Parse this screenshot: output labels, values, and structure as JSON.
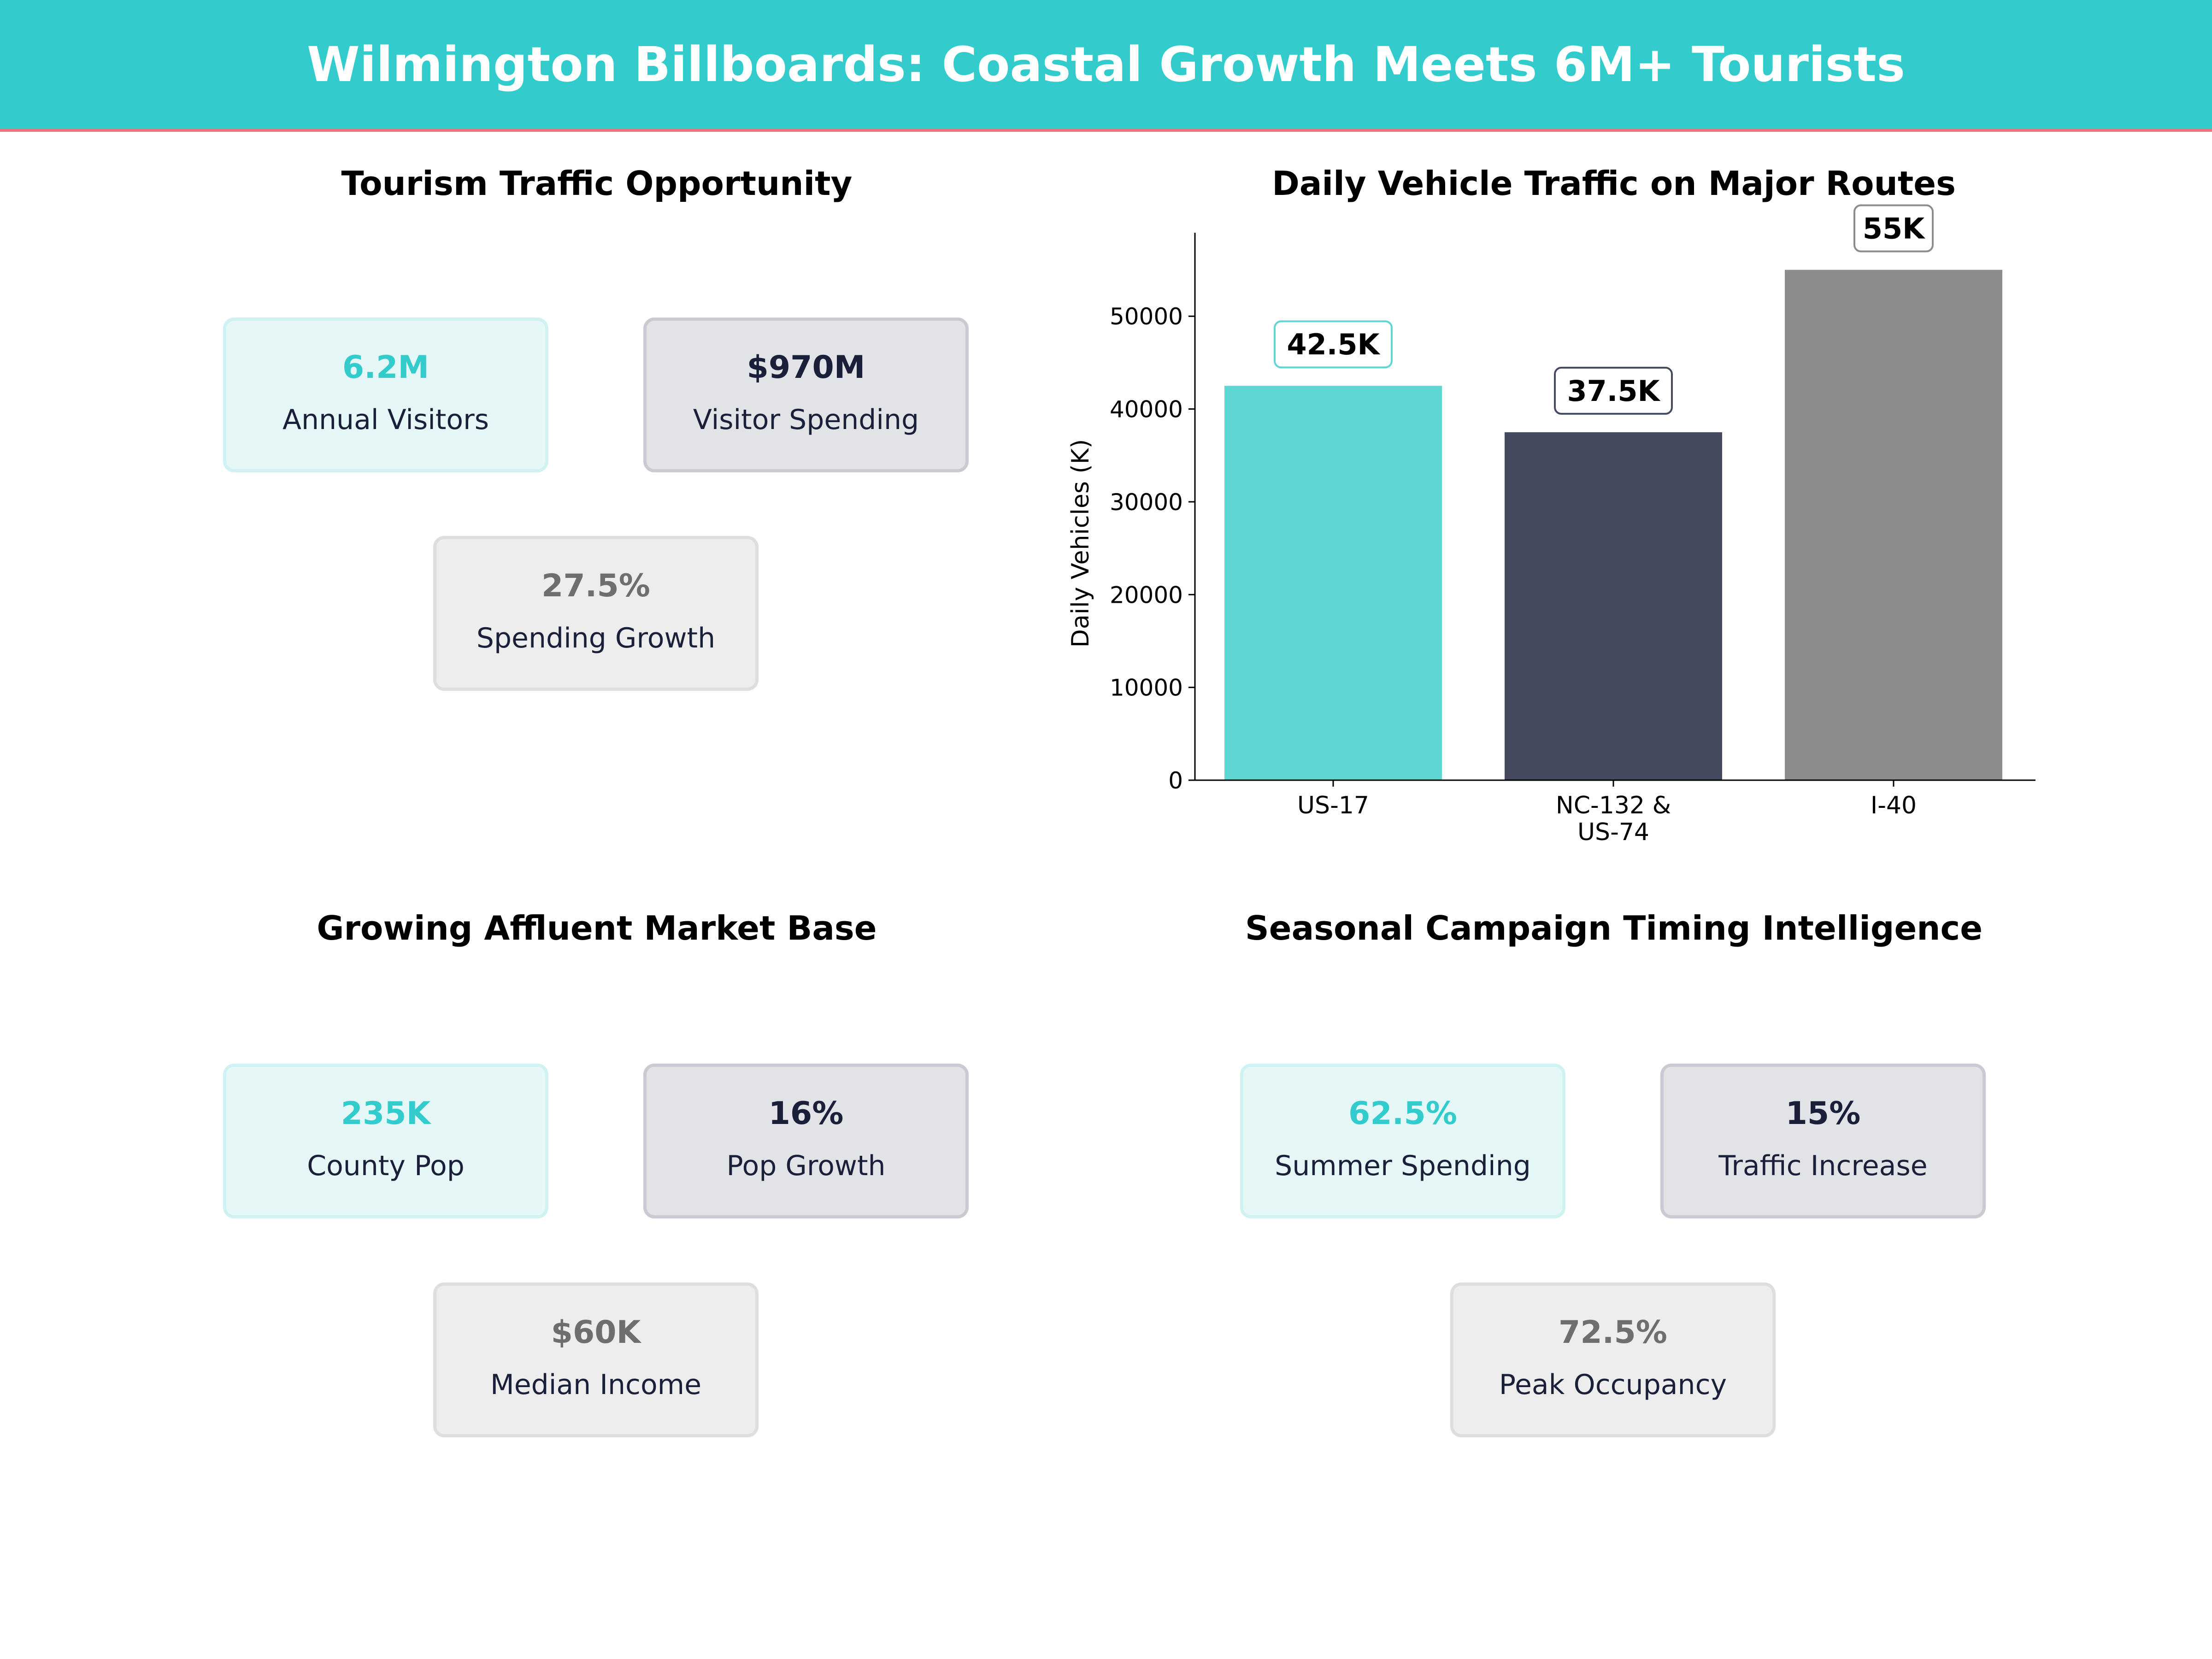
{
  "header": {
    "title": "Wilmington Billboards: Coastal Growth Meets 6M+ Tourists"
  },
  "panels": {
    "tourism": {
      "title": "Tourism Traffic Opportunity",
      "cards": [
        {
          "value": "6.2M",
          "label": "Annual Visitors"
        },
        {
          "value": "$970M",
          "label": "Visitor Spending"
        },
        {
          "value": "27.5%",
          "label": "Spending Growth"
        }
      ]
    },
    "market": {
      "title": "Growing Affluent Market Base",
      "cards": [
        {
          "value": "235K",
          "label": "County Pop"
        },
        {
          "value": "16%",
          "label": "Pop Growth"
        },
        {
          "value": "$60K",
          "label": "Median Income"
        }
      ]
    },
    "seasonal": {
      "title": "Seasonal Campaign Timing Intelligence",
      "cards": [
        {
          "value": "62.5%",
          "label": "Summer Spending"
        },
        {
          "value": "15%",
          "label": "Traffic Increase"
        },
        {
          "value": "72.5%",
          "label": "Peak Occupancy"
        }
      ]
    }
  },
  "colors": {
    "accent": "#33CCCC",
    "navy": "#454A5F",
    "gray": "#8C8C8C"
  },
  "chart_data": {
    "type": "bar",
    "title": "Daily Vehicle Traffic on Major Routes",
    "ylabel": "Daily Vehicles (K)",
    "xlabel": "",
    "categories": [
      "US-17",
      "NC-132 & US-74",
      "I-40"
    ],
    "category_lines": [
      [
        "US-17"
      ],
      [
        "NC-132 &",
        "US-74"
      ],
      [
        "I-40"
      ]
    ],
    "values": [
      42500,
      37500,
      55000
    ],
    "data_labels": [
      "42.5K",
      "37.5K",
      "55K"
    ],
    "bar_colors": [
      "#5DD6D4",
      "#454A5F",
      "#8C8C8C"
    ],
    "label_border_colors": [
      "#5DD6D4",
      "#454A5F",
      "#8C8C8C"
    ],
    "yticks": [
      0,
      10000,
      20000,
      30000,
      40000,
      50000
    ],
    "ylim": [
      0,
      59000
    ],
    "grid": false
  }
}
